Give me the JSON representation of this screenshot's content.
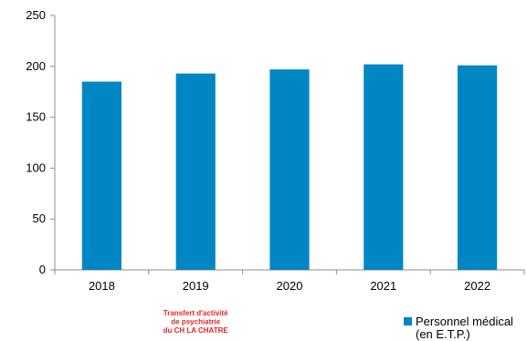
{
  "chart_data": {
    "type": "bar",
    "categories": [
      "2018",
      "2019",
      "2020",
      "2021",
      "2022"
    ],
    "series": [
      {
        "name": "Personnel médical (en E.T.P.)",
        "values": [
          185,
          193,
          197,
          202,
          201
        ],
        "color": "#0086c3"
      }
    ],
    "title": "",
    "xlabel": "",
    "ylabel": "",
    "ylim": [
      0,
      250
    ],
    "yticks": [
      0,
      50,
      100,
      150,
      200,
      250
    ],
    "grid": false,
    "legend": {
      "position": "bottom-right",
      "line1": "Personnel médical",
      "line2": "(en E.T.P.)"
    },
    "annotations": [
      {
        "category": "2019",
        "lines": [
          "Transfert d'activité",
          "de psychiatrie",
          "du CH LA CHATRE"
        ],
        "color": "#e32626"
      }
    ]
  }
}
